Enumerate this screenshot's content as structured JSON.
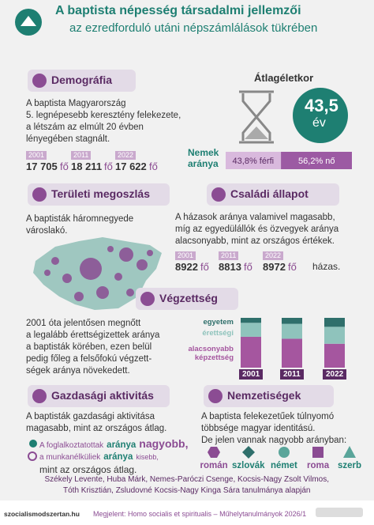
{
  "header": {
    "title": "A baptista népesség társadalmi jellemzői",
    "subtitle": "az ezredforduló utáni népszámlálások tükrében"
  },
  "demografia": {
    "heading": "Demográfia",
    "lines": [
      "A baptista Magyarország",
      "5. legnépesebb keresztény felekezete,",
      "a létszám az elmúlt 20 évben",
      "lényegében stagnált."
    ],
    "years": [
      {
        "year": "2001",
        "count": "17 705",
        "unit": "fő"
      },
      {
        "year": "2011",
        "count": "18 211",
        "unit": "fő"
      },
      {
        "year": "2022",
        "count": "17 622",
        "unit": "fő"
      }
    ]
  },
  "atlageletkor": {
    "heading": "Átlagéletkor",
    "value": "43,5",
    "unit": "év"
  },
  "nemek": {
    "label_lines": [
      "Nemek",
      "aránya"
    ],
    "segments": [
      {
        "value": 43.8,
        "label": "43,8% férfi",
        "color": "#d9b9dd"
      },
      {
        "value": 56.2,
        "label": "56,2% nő",
        "color": "#9c5aa3"
      }
    ]
  },
  "teruleti": {
    "heading": "Területi megoszlás",
    "lines": [
      "A baptisták háromnegyede",
      "városlakó."
    ]
  },
  "csaladi": {
    "heading": "Családi állapot",
    "lines": [
      "A házasok aránya valamivel magasabb,",
      "míg az egyedülállók és özvegyek aránya",
      "alacsonyabb, mint az országos értékek."
    ],
    "years": [
      {
        "year": "2001",
        "count": "8922",
        "unit": "fő"
      },
      {
        "year": "2011",
        "count": "8813",
        "unit": "fő"
      },
      {
        "year": "2022",
        "count": "8972",
        "unit": "fő"
      }
    ],
    "suffix": "házas."
  },
  "vegzettseg": {
    "heading": "Végzettség",
    "lines": [
      "2001 óta jelentősen megnőtt",
      "a legalább érettségizettek aránya",
      "a baptisták körében, ezen belül",
      "pedig főleg a felsőfokú végzett-",
      "ségek aránya növekedett."
    ],
    "chart": {
      "type": "bar",
      "stacked": true,
      "categories": [
        "2001",
        "2011",
        "2022"
      ],
      "series": [
        {
          "name": "egyetem",
          "color": "#2f6f6b",
          "values": [
            10,
            12,
            18
          ]
        },
        {
          "name": "érettségi",
          "color": "#8fc3bc",
          "values": [
            28,
            30,
            34
          ]
        },
        {
          "name": "alacsonyabb képzettség",
          "color": "#a5569f",
          "values": [
            62,
            58,
            48
          ]
        }
      ]
    }
  },
  "gazdasagi": {
    "heading": "Gazdasági aktivitás",
    "lines": [
      "A baptisták gazdasági aktivitása",
      "magasabb, mint az országos átlag."
    ],
    "employed": [
      "A foglalkoztatottak",
      "aránya",
      "nagyobb,"
    ],
    "unemployed": [
      "a munkanélküliek",
      "aránya",
      "kisebb,"
    ],
    "closing": "mint az országos átlag."
  },
  "nemzetisegek": {
    "heading": "Nemzetiségek",
    "lines": [
      "A baptista felekezetűek túlnyomó",
      "többsége magyar identitású.",
      "De jelen vannak nagyobb arányban:"
    ],
    "groups": [
      "román",
      "szlovák",
      "német",
      "roma",
      "szerb"
    ]
  },
  "footer": {
    "authors": [
      "Székely Levente, Huba Márk, Nemes-Paróczi Csenge, Kocsis-Nagy Zsolt Vilmos,",
      "Tóth Krisztián, Zsludovné Kocsis-Nagy Kinga Sára tanulmánya alapján"
    ],
    "site": "szocialismodszertan.hu",
    "published": "Megjelent: Homo socialis et spiritualis – Műhelytanulmányok 2026/1"
  }
}
